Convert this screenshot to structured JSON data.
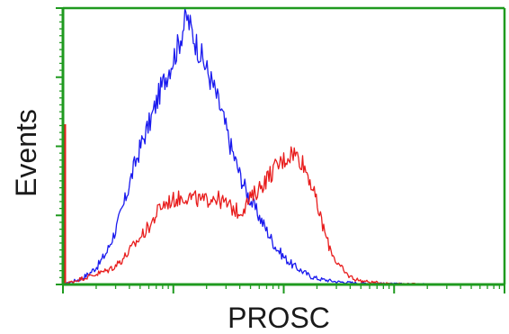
{
  "chart_data": {
    "type": "line",
    "title": "",
    "xlabel": "PROSC",
    "ylabel": "Events",
    "x_range": [
      0,
      1
    ],
    "y_range": [
      0,
      1
    ],
    "grid": false,
    "legend": "none",
    "axis_color": "#1f9a1f",
    "series": [
      {
        "color": "#1a1aee",
        "x": [
          0.0,
          0.02,
          0.04,
          0.06,
          0.08,
          0.1,
          0.12,
          0.14,
          0.16,
          0.18,
          0.2,
          0.22,
          0.24,
          0.26,
          0.28,
          0.3,
          0.32,
          0.34,
          0.36,
          0.38,
          0.4,
          0.42,
          0.44,
          0.46,
          0.48,
          0.5,
          0.52,
          0.54,
          0.56,
          0.58,
          0.6,
          0.62,
          0.64,
          0.66,
          0.68,
          0.7,
          0.74,
          0.78,
          0.82,
          0.86,
          0.9,
          0.95,
          1.0
        ],
        "y": [
          0.0,
          0.01,
          0.02,
          0.04,
          0.07,
          0.12,
          0.2,
          0.3,
          0.42,
          0.52,
          0.6,
          0.7,
          0.78,
          0.86,
          0.97,
          0.88,
          0.8,
          0.72,
          0.62,
          0.5,
          0.4,
          0.32,
          0.26,
          0.2,
          0.14,
          0.1,
          0.07,
          0.05,
          0.03,
          0.02,
          0.015,
          0.01,
          0.008,
          0.006,
          0.005,
          0.004,
          0.003,
          0.002,
          0.002,
          0.001,
          0.001,
          0.0,
          0.0
        ]
      },
      {
        "color": "#e81c1c",
        "x": [
          0.0,
          0.02,
          0.04,
          0.06,
          0.08,
          0.1,
          0.12,
          0.14,
          0.16,
          0.18,
          0.2,
          0.22,
          0.24,
          0.26,
          0.28,
          0.3,
          0.32,
          0.34,
          0.36,
          0.38,
          0.4,
          0.42,
          0.44,
          0.46,
          0.48,
          0.5,
          0.52,
          0.54,
          0.56,
          0.58,
          0.6,
          0.62,
          0.64,
          0.66,
          0.68,
          0.7,
          0.72,
          0.74,
          0.76,
          0.8,
          0.84,
          0.9,
          0.95,
          1.0
        ],
        "y": [
          0.0,
          0.01,
          0.02,
          0.03,
          0.04,
          0.05,
          0.07,
          0.1,
          0.14,
          0.18,
          0.22,
          0.28,
          0.3,
          0.31,
          0.32,
          0.31,
          0.3,
          0.32,
          0.3,
          0.28,
          0.26,
          0.3,
          0.34,
          0.38,
          0.42,
          0.45,
          0.48,
          0.45,
          0.38,
          0.26,
          0.15,
          0.08,
          0.04,
          0.02,
          0.012,
          0.008,
          0.006,
          0.004,
          0.003,
          0.002,
          0.001,
          0.001,
          0.0,
          0.0
        ]
      }
    ],
    "baseline_spike": {
      "color": "#e81c1c",
      "x": 0.0,
      "y": 0.58
    }
  }
}
